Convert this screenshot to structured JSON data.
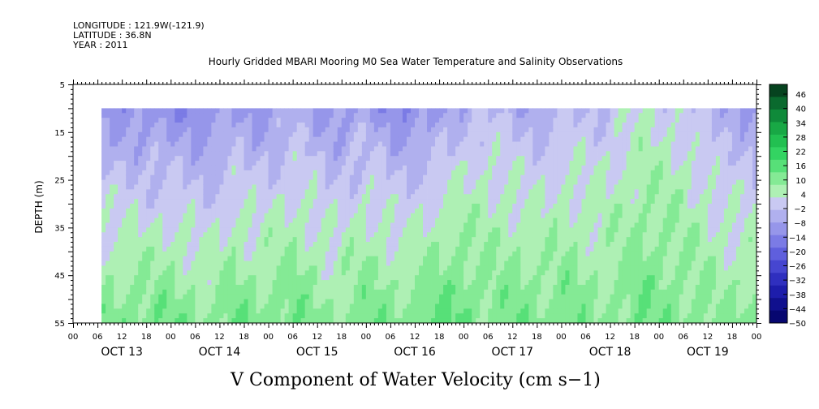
{
  "header": {
    "longitude": "LONGITUDE : 121.9W(-121.9)",
    "latitude": "LATITUDE : 36.8N",
    "year": "YEAR : 2011"
  },
  "chart_data": {
    "type": "heatmap",
    "title": "Hourly Gridded MBARI Mooring M0 Sea Water Temperature and Salinity Observations",
    "xlabel": "V Component of Water Velocity (cm s−1)",
    "ylabel": "DEPTH (m)",
    "y_ticks": [
      "5",
      "15",
      "25",
      "35",
      "45",
      "55"
    ],
    "ylim": [
      5,
      55
    ],
    "y_inverted": true,
    "x_hour_ticks": [
      "00",
      "06",
      "12",
      "18",
      "00",
      "06",
      "12",
      "18",
      "00",
      "06",
      "12",
      "18",
      "00",
      "06",
      "12",
      "18",
      "00",
      "06",
      "12",
      "18",
      "00",
      "06",
      "12",
      "18",
      "00",
      "06",
      "12",
      "18",
      "00"
    ],
    "x_day_labels": [
      "OCT 13",
      "OCT 14",
      "OCT 15",
      "OCT 16",
      "OCT 17",
      "OCT 18",
      "OCT 19"
    ],
    "x_range_hours": [
      0,
      168
    ],
    "data_start_hour": 7,
    "data_depth_range": [
      10,
      55
    ],
    "colorbar": {
      "labels": [
        "46",
        "40",
        "34",
        "28",
        "22",
        "16",
        "10",
        "4",
        "−2",
        "−8",
        "−14",
        "−20",
        "−26",
        "−32",
        "−38",
        "−44",
        "−50"
      ],
      "range": [
        -50,
        46
      ],
      "colors_high_to_low": [
        "#06431f",
        "#0a6a2e",
        "#0f8a3a",
        "#18a845",
        "#22c051",
        "#33d462",
        "#57e078",
        "#84ea95",
        "#aef0b4",
        "#c9c9f2",
        "#b0b0ee",
        "#9696ea",
        "#7b7be5",
        "#5f5fdd",
        "#4646d0",
        "#2f2fbf",
        "#1d1dab",
        "#10108e",
        "#070770"
      ]
    },
    "series": [
      {
        "time_hours": [
          7,
          24,
          34,
          40,
          45,
          55,
          64,
          72,
          80,
          85,
          95,
          100,
          110,
          115,
          121,
          130,
          140,
          150,
          155,
          160,
          165
        ],
        "description_v_surface": [
          -12,
          -14,
          -14,
          -10,
          -12,
          -8,
          -12,
          -10,
          -14,
          -14,
          -8,
          -4,
          -8,
          -8,
          -6,
          -4,
          0,
          -2,
          -6,
          -8,
          -10
        ],
        "description_v_bottom": [
          8,
          10,
          6,
          10,
          8,
          10,
          6,
          10,
          8,
          10,
          12,
          8,
          10,
          8,
          10,
          6,
          10,
          8,
          8,
          6,
          8
        ]
      }
    ]
  }
}
